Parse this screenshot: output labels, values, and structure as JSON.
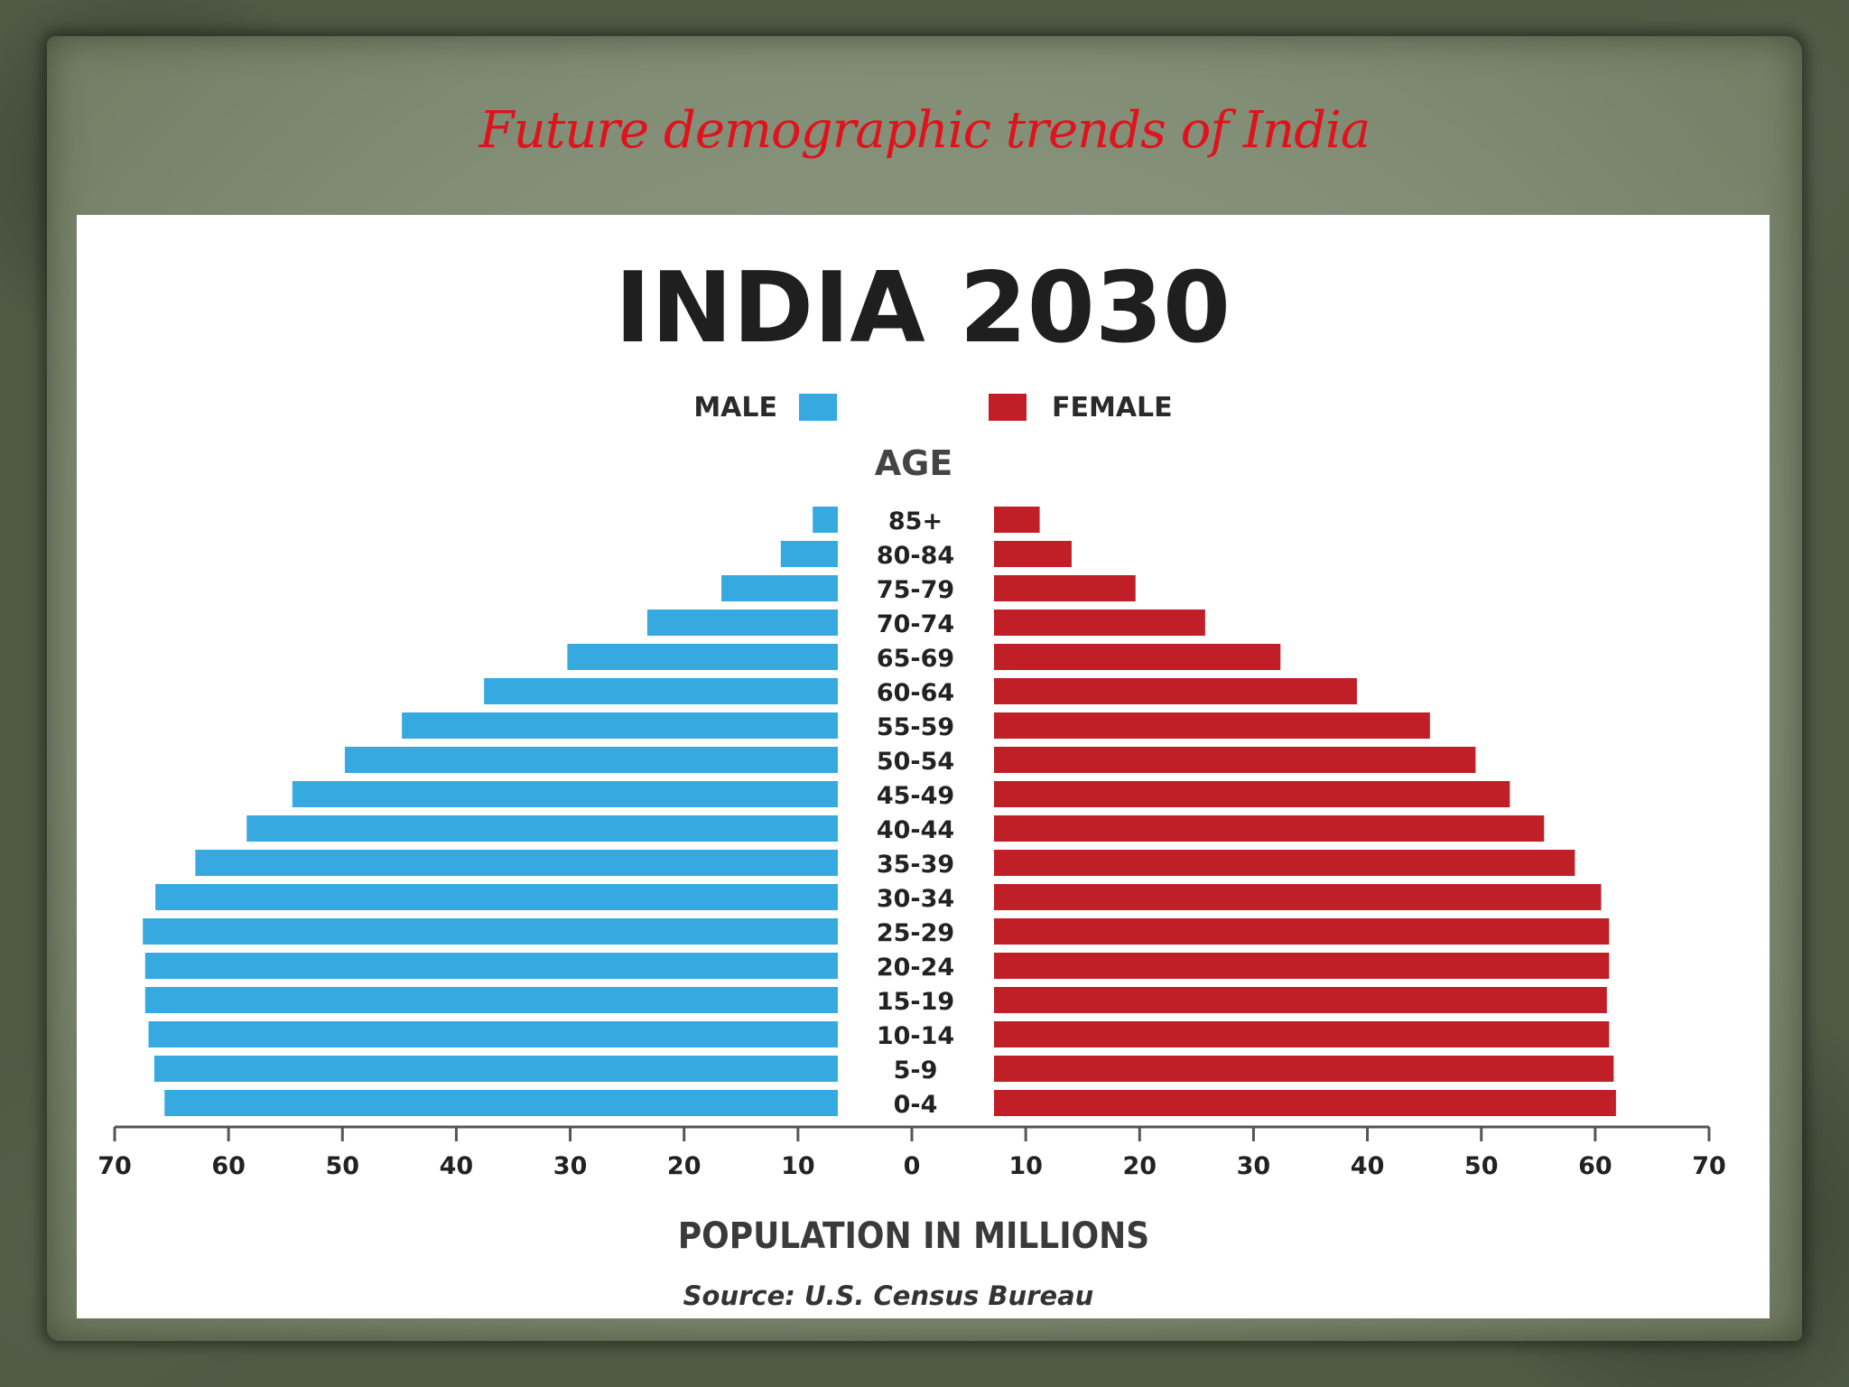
{
  "slide": {
    "title": "Future demographic trends of India"
  },
  "chart_data": {
    "type": "bar",
    "orientation": "horizontal-population-pyramid",
    "title": "INDIA 2030",
    "ylabel": "AGE",
    "xlabel": "POPULATION IN MILLIONS",
    "source": "Source: U.S. Census Bureau",
    "xlim": [
      0,
      70
    ],
    "x_ticks": [
      70,
      60,
      50,
      40,
      30,
      20,
      10,
      0,
      10,
      20,
      30,
      40,
      50,
      60,
      70
    ],
    "categories": [
      "85+",
      "80-84",
      "75-79",
      "70-74",
      "65-69",
      "60-64",
      "55-59",
      "50-54",
      "45-49",
      "40-44",
      "35-39",
      "30-34",
      "25-29",
      "20-24",
      "15-19",
      "10-14",
      "5-9",
      "0-4"
    ],
    "series": [
      {
        "name": "MALE",
        "color": "#36a9e1",
        "values": [
          2.2,
          5.0,
          10.2,
          16.7,
          23.7,
          31.0,
          38.2,
          43.2,
          47.8,
          51.8,
          56.3,
          59.8,
          60.9,
          60.7,
          60.7,
          60.4,
          59.9,
          59.0
        ]
      },
      {
        "name": "FEMALE",
        "color": "#c01f28",
        "values": [
          4.0,
          6.8,
          12.4,
          18.5,
          25.1,
          31.8,
          38.2,
          42.2,
          45.2,
          48.2,
          50.9,
          53.2,
          53.9,
          53.9,
          53.7,
          53.9,
          54.3,
          54.5
        ]
      }
    ],
    "legend_position": "top-center",
    "grid": false
  }
}
